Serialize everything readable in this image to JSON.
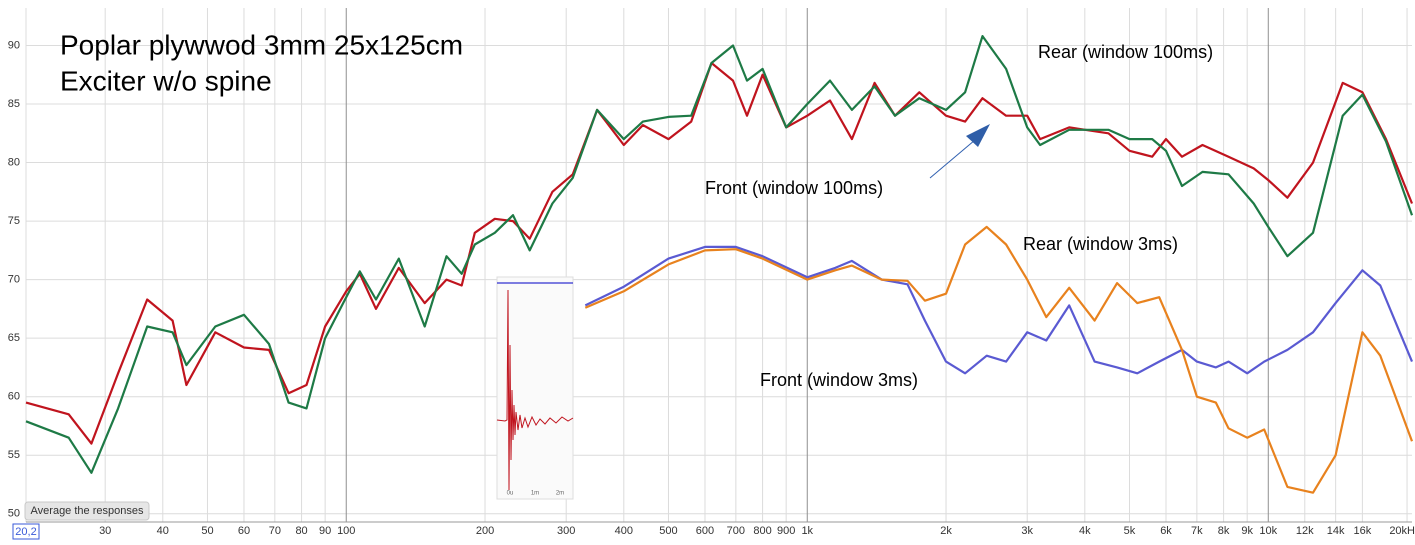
{
  "chart_data": {
    "type": "line",
    "title": "Poplar plywwod 3mm 25x125cm",
    "subtitle": "Exciter w/o spine",
    "xscale": "log",
    "grid": true,
    "xlim": [
      20.2,
      20500
    ],
    "ylim": [
      49.3,
      93.2
    ],
    "yticks": [
      50,
      55,
      60,
      65,
      70,
      75,
      80,
      85,
      90
    ],
    "xticks": [
      {
        "value": 20.2,
        "label": "20,2"
      },
      30,
      40,
      50,
      60,
      70,
      80,
      90,
      100,
      200,
      300,
      400,
      500,
      600,
      700,
      800,
      900,
      {
        "value": 1000,
        "label": "1k"
      },
      {
        "value": 2000,
        "label": "2k"
      },
      {
        "value": 3000,
        "label": "3k"
      },
      {
        "value": 4000,
        "label": "4k"
      },
      {
        "value": 5000,
        "label": "5k"
      },
      {
        "value": 6000,
        "label": "6k"
      },
      {
        "value": 7000,
        "label": "7k"
      },
      {
        "value": 8000,
        "label": "8k"
      },
      {
        "value": 9000,
        "label": "9k"
      },
      {
        "value": 10000,
        "label": "10k"
      },
      {
        "value": 12000,
        "label": "12k"
      },
      {
        "value": 14000,
        "label": "14k"
      },
      {
        "value": 16000,
        "label": "16k"
      },
      {
        "value": 20000,
        "label": "20kH"
      }
    ],
    "button": "Average the responses",
    "inset_labels": [
      "0u",
      "1m",
      "2m"
    ],
    "series": [
      {
        "name": "Rear (window 100ms)",
        "color": "#1e7a46",
        "x": [
          20.2,
          25,
          28,
          32,
          37,
          42,
          45,
          52,
          60,
          68,
          75,
          82,
          90,
          100,
          107,
          116,
          130,
          148,
          165,
          178,
          190,
          210,
          230,
          250,
          280,
          310,
          350,
          400,
          440,
          500,
          560,
          620,
          690,
          740,
          800,
          900,
          1000,
          1120,
          1250,
          1400,
          1550,
          1750,
          2000,
          2200,
          2400,
          2700,
          3000,
          3200,
          3700,
          4500,
          5000,
          5600,
          6000,
          6500,
          7200,
          8200,
          9300,
          10000,
          11000,
          12500,
          14500,
          16000,
          18000,
          20500
        ],
        "values": [
          57.9,
          56.5,
          53.5,
          59,
          66,
          65.5,
          62.7,
          66,
          67,
          64.5,
          59.5,
          59,
          65,
          68.5,
          70.7,
          68.3,
          71.8,
          66,
          72,
          70.5,
          73,
          74,
          75.5,
          72.5,
          76.5,
          78.7,
          84.5,
          82,
          83.5,
          83.9,
          84,
          88.5,
          90,
          87,
          88,
          83,
          85,
          87,
          84.5,
          86.5,
          84,
          85.5,
          84.5,
          86,
          90.8,
          88,
          83,
          81.5,
          82.8,
          82.8,
          82,
          82,
          81,
          78,
          79.2,
          79,
          76.5,
          74.5,
          72,
          74,
          84,
          85.8,
          81.8,
          75.5
        ]
      },
      {
        "name": "Front (window 100ms)",
        "color": "#c0141e",
        "x": [
          20.2,
          25,
          28,
          32,
          37,
          42,
          45,
          52,
          60,
          68,
          75,
          82,
          90,
          100,
          107,
          116,
          130,
          148,
          165,
          178,
          190,
          210,
          230,
          250,
          280,
          310,
          350,
          400,
          440,
          500,
          560,
          620,
          690,
          740,
          800,
          900,
          1000,
          1120,
          1250,
          1400,
          1550,
          1750,
          2000,
          2200,
          2400,
          2700,
          3000,
          3200,
          3700,
          4500,
          5000,
          5600,
          6000,
          6500,
          7200,
          8200,
          9300,
          10000,
          11000,
          12500,
          14500,
          16000,
          18000,
          20500
        ],
        "values": [
          59.5,
          58.5,
          56,
          62,
          68.3,
          66.5,
          61,
          65.5,
          64.2,
          64,
          60.3,
          61,
          66,
          69,
          70.5,
          67.5,
          71,
          68,
          70,
          69.5,
          74,
          75.2,
          75,
          73.5,
          77.5,
          79,
          84.5,
          81.5,
          83.2,
          82,
          83.5,
          88.5,
          87,
          84,
          87.5,
          83,
          84,
          85.3,
          82,
          86.8,
          84,
          86,
          84,
          83.5,
          85.5,
          84,
          84,
          82,
          83,
          82.5,
          81,
          80.5,
          82,
          80.5,
          81.5,
          80.5,
          79.5,
          78.5,
          77,
          80,
          86.8,
          86,
          82,
          76.5
        ]
      },
      {
        "name": "Rear (window 3ms)",
        "color": "#e8821e",
        "x": [
          330,
          400,
          500,
          600,
          700,
          800,
          1000,
          1150,
          1250,
          1450,
          1650,
          1800,
          2000,
          2200,
          2450,
          2700,
          3000,
          3300,
          3700,
          4200,
          4700,
          5200,
          5800,
          6500,
          7000,
          7700,
          8200,
          9000,
          9800,
          11000,
          12500,
          14000,
          16000,
          17500,
          20500
        ],
        "values": [
          67.6,
          69,
          71.3,
          72.5,
          72.6,
          71.8,
          70,
          70.8,
          71.2,
          70,
          69.9,
          68.2,
          68.8,
          73,
          74.5,
          73,
          70,
          66.8,
          69.3,
          66.5,
          69.7,
          68,
          68.5,
          64,
          60,
          59.5,
          57.3,
          56.5,
          57.2,
          52.3,
          51.8,
          55,
          65.5,
          63.5,
          56.2
        ]
      },
      {
        "name": "Front (window 3ms)",
        "color": "#5a5ad2",
        "x": [
          330,
          400,
          500,
          600,
          700,
          800,
          1000,
          1150,
          1250,
          1450,
          1650,
          1800,
          2000,
          2200,
          2450,
          2700,
          3000,
          3300,
          3700,
          4200,
          4700,
          5200,
          5800,
          6500,
          7000,
          7700,
          8200,
          9000,
          9800,
          11000,
          12500,
          14000,
          16000,
          17500,
          20500
        ],
        "values": [
          67.8,
          69.4,
          71.8,
          72.8,
          72.8,
          72,
          70.2,
          71,
          71.6,
          70,
          69.6,
          66.5,
          63,
          62,
          63.5,
          63,
          65.5,
          64.8,
          67.8,
          63,
          62.5,
          62,
          63,
          64,
          63,
          62.5,
          63,
          62,
          63,
          64,
          65.5,
          68,
          70.8,
          69.5,
          63
        ]
      }
    ]
  }
}
